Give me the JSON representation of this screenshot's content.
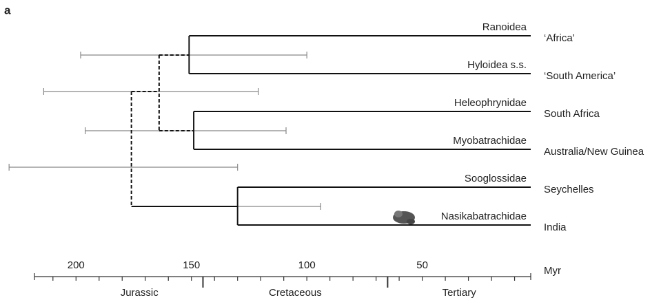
{
  "panel_label": "a",
  "taxa": [
    {
      "name": "Ranoidea",
      "region": "‘Africa’"
    },
    {
      "name": "Hyloidea s.s.",
      "region": "‘South America’"
    },
    {
      "name": "Heleophrynidae",
      "region": "South Africa"
    },
    {
      "name": "Myobatrachidae",
      "region": "Australia/New Guinea"
    },
    {
      "name": "Sooglossidae",
      "region": "Seychelles"
    },
    {
      "name": "Nasikabatrachidae",
      "region": "India"
    }
  ],
  "nodes": [
    {
      "age": 151,
      "ci": [
        198,
        100
      ]
    },
    {
      "age": 149,
      "ci": [
        196,
        109
      ]
    },
    {
      "age": 164,
      "ci": [
        214,
        121
      ]
    },
    {
      "age": 130,
      "ci": [
        130,
        94
      ]
    },
    {
      "age": 176,
      "ci": [
        229,
        130
      ]
    }
  ],
  "axis": {
    "label": "Myr",
    "xlim": [
      218,
      3
    ],
    "ticks": [
      200,
      150,
      100,
      50
    ],
    "minor_ticks": [
      210,
      200,
      190,
      180,
      170,
      160,
      150,
      140,
      130,
      120,
      110,
      100,
      90,
      80,
      70,
      60,
      50,
      40,
      30,
      20,
      10
    ],
    "period_boundaries": [
      145,
      65
    ],
    "periods": [
      "Jurassic",
      "Cretaceous",
      "Tertiary"
    ]
  }
}
